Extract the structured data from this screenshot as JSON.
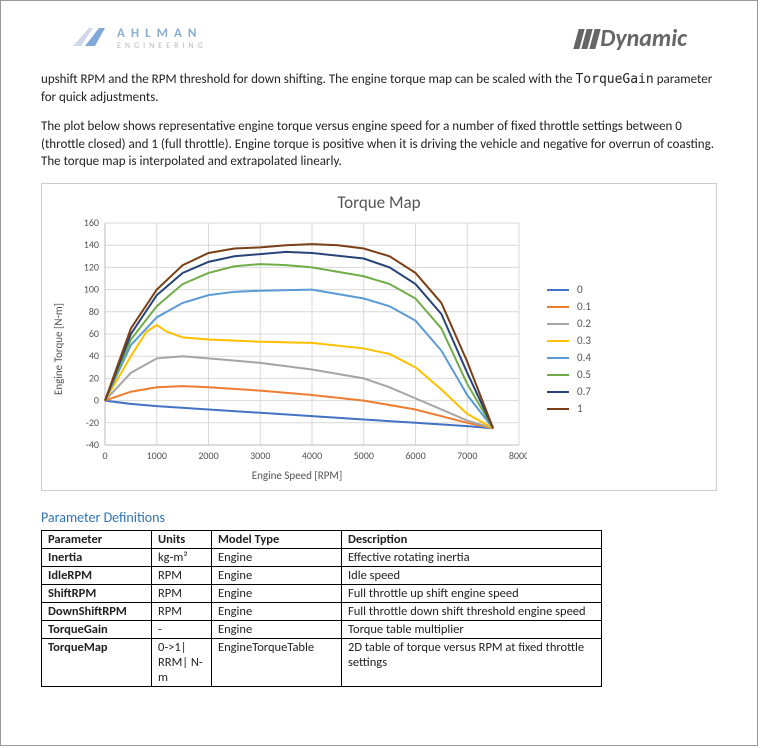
{
  "logos": {
    "left": {
      "name": "AHLMAN",
      "sub": "ENGINEERING",
      "mark": "A"
    },
    "right": {
      "name": "Dynamic"
    }
  },
  "paragraphs": {
    "p1a": "upshift RPM and the RPM threshold for down shifting.  The engine torque map can be scaled with the ",
    "p1b": "TorqueGain",
    "p1c": " parameter for quick adjustments.",
    "p2": "The plot below shows representative engine torque versus engine speed for a number of fixed throttle settings between 0 (throttle closed) and 1 (full throttle).  Engine torque is positive when it is driving the vehicle and negative for overrun of coasting.  The torque map is interpolated and extrapolated linearly."
  },
  "chart": {
    "type": "line",
    "title": "Torque Map",
    "xlabel": "Engine Speed [RPM]",
    "ylabel": "Engine Torque [N-m]",
    "xlim": [
      0,
      8000
    ],
    "xtick_step": 1000,
    "ylim": [
      -40,
      160
    ],
    "ytick_step": 20,
    "background_color": "#ffffff",
    "grid_color": "#d9d9d9",
    "axis_font_size": 10,
    "title_font_size": 17,
    "line_width": 2,
    "series": [
      {
        "name": "0",
        "color": "#4472c4",
        "x": [
          0,
          500,
          1000,
          2000,
          3000,
          4000,
          5000,
          6000,
          7000,
          7500
        ],
        "y": [
          0,
          -3,
          -5,
          -8,
          -11,
          -14,
          -17,
          -20,
          -23,
          -25
        ]
      },
      {
        "name": "0.1",
        "color": "#ed7d31",
        "x": [
          0,
          500,
          1000,
          1500,
          2000,
          3000,
          4000,
          5000,
          6000,
          7000,
          7500
        ],
        "y": [
          0,
          8,
          12,
          13,
          12,
          9,
          5,
          0,
          -8,
          -20,
          -25
        ]
      },
      {
        "name": "0.2",
        "color": "#a5a5a5",
        "x": [
          0,
          500,
          1000,
          1500,
          2000,
          3000,
          4000,
          5000,
          5500,
          6000,
          6500,
          7000,
          7500
        ],
        "y": [
          0,
          25,
          38,
          40,
          38,
          34,
          28,
          20,
          12,
          2,
          -8,
          -18,
          -25
        ]
      },
      {
        "name": "0.3",
        "color": "#ffc000",
        "x": [
          0,
          500,
          800,
          1000,
          1200,
          1500,
          2000,
          3000,
          4000,
          5000,
          5500,
          6000,
          6500,
          7000,
          7500
        ],
        "y": [
          0,
          40,
          62,
          68,
          62,
          57,
          55,
          53,
          52,
          47,
          42,
          30,
          10,
          -12,
          -25
        ]
      },
      {
        "name": "0.4",
        "color": "#5b9bd5",
        "x": [
          0,
          500,
          1000,
          1500,
          2000,
          2500,
          3000,
          4000,
          5000,
          5500,
          6000,
          6500,
          7000,
          7500
        ],
        "y": [
          0,
          50,
          75,
          88,
          95,
          98,
          99,
          100,
          92,
          85,
          72,
          45,
          5,
          -25
        ]
      },
      {
        "name": "0.5",
        "color": "#70ad47",
        "x": [
          0,
          500,
          1000,
          1500,
          2000,
          2500,
          3000,
          3500,
          4000,
          5000,
          5500,
          6000,
          6500,
          7000,
          7500
        ],
        "y": [
          0,
          55,
          85,
          105,
          115,
          121,
          123,
          122,
          120,
          112,
          105,
          92,
          65,
          15,
          -25
        ]
      },
      {
        "name": "0.7",
        "color": "#264478",
        "x": [
          0,
          500,
          1000,
          1500,
          2000,
          2500,
          3000,
          3500,
          4000,
          5000,
          5500,
          6000,
          6500,
          7000,
          7500
        ],
        "y": [
          0,
          60,
          95,
          115,
          125,
          130,
          132,
          134,
          133,
          128,
          120,
          105,
          78,
          25,
          -25
        ]
      },
      {
        "name": "1",
        "color": "#7b3f16",
        "x": [
          0,
          500,
          1000,
          1500,
          2000,
          2500,
          3000,
          3500,
          4000,
          4500,
          5000,
          5500,
          6000,
          6500,
          7000,
          7500
        ],
        "y": [
          0,
          65,
          100,
          122,
          133,
          137,
          138,
          140,
          141,
          140,
          137,
          130,
          115,
          88,
          35,
          -25
        ]
      }
    ]
  },
  "section_header": "Parameter Definitions",
  "table": {
    "columns": [
      "Parameter",
      "Units",
      "Model Type",
      "Description"
    ],
    "col_widths": [
      "110px",
      "60px",
      "130px",
      "260px"
    ],
    "rows": [
      [
        "Inertia",
        "kg-m²",
        "Engine",
        "Effective rotating inertia"
      ],
      [
        "IdleRPM",
        "RPM",
        "Engine",
        "Idle speed"
      ],
      [
        "ShiftRPM",
        "RPM",
        "Engine",
        "Full throttle up shift engine speed"
      ],
      [
        "DownShiftRPM",
        "RPM",
        "Engine",
        "Full throttle down shift threshold engine speed"
      ],
      [
        "TorqueGain",
        "-",
        "Engine",
        "Torque table multiplier"
      ],
      [
        "TorqueMap",
        "0->1| RRM| N-m",
        "EngineTorqueTable",
        "2D table of torque versus RPM at fixed throttle settings"
      ]
    ]
  }
}
